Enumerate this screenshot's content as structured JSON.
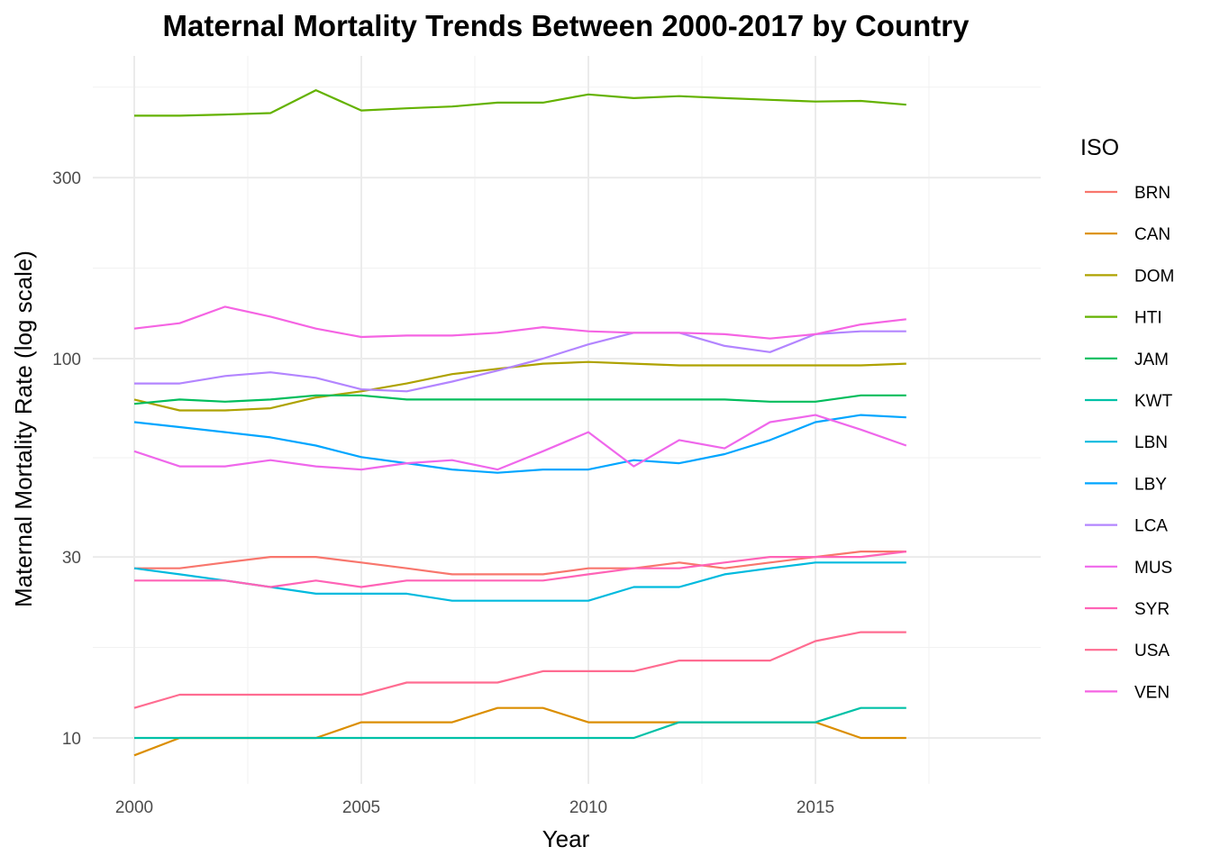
{
  "chart_data": {
    "type": "line",
    "title": "Maternal Mortality Trends Between 2000-2017 by Country",
    "xlabel": "Year",
    "ylabel": "Maternal Mortality Rate (log scale)",
    "y_scale": "log10",
    "x_ticks": [
      2000,
      2005,
      2010,
      2015
    ],
    "y_ticks": [
      10,
      30,
      100,
      300
    ],
    "xlim": [
      1999,
      2019
    ],
    "ylim": [
      8,
      600
    ],
    "grid": true,
    "legend": {
      "title": "ISO",
      "position": "right"
    },
    "x": [
      2000,
      2001,
      2002,
      2003,
      2004,
      2005,
      2006,
      2007,
      2008,
      2009,
      2010,
      2011,
      2012,
      2013,
      2014,
      2015,
      2016,
      2017
    ],
    "series": [
      {
        "name": "BRN",
        "color": "#F8766D",
        "values": [
          28,
          28,
          29,
          30,
          30,
          29,
          28,
          27,
          27,
          27,
          28,
          28,
          29,
          28,
          29,
          30,
          31,
          31
        ]
      },
      {
        "name": "CAN",
        "color": "#DB8E00",
        "values": [
          9,
          10,
          10,
          10,
          10,
          11,
          11,
          11,
          12,
          12,
          11,
          11,
          11,
          11,
          11,
          11,
          10,
          10
        ]
      },
      {
        "name": "DOM",
        "color": "#AEA200",
        "values": [
          78,
          73,
          73,
          74,
          79,
          82,
          86,
          91,
          94,
          97,
          98,
          97,
          96,
          96,
          96,
          96,
          96,
          97
        ]
      },
      {
        "name": "HTI",
        "color": "#64B200",
        "values": [
          437,
          437,
          440,
          444,
          510,
          451,
          457,
          462,
          473,
          473,
          497,
          486,
          492,
          486,
          481,
          476,
          478,
          467
        ]
      },
      {
        "name": "JAM",
        "color": "#00BD5C",
        "values": [
          76,
          78,
          77,
          78,
          80,
          80,
          78,
          78,
          78,
          78,
          78,
          78,
          78,
          78,
          77,
          77,
          80,
          80
        ]
      },
      {
        "name": "KWT",
        "color": "#00C1A7",
        "values": [
          10,
          10,
          10,
          10,
          10,
          10,
          10,
          10,
          10,
          10,
          10,
          10,
          11,
          11,
          11,
          11,
          12,
          12
        ]
      },
      {
        "name": "LBN",
        "color": "#00BADE",
        "values": [
          28,
          27,
          26,
          25,
          24,
          24,
          24,
          23,
          23,
          23,
          23,
          25,
          25,
          27,
          28,
          29,
          29,
          29
        ]
      },
      {
        "name": "LBY",
        "color": "#00A6FF",
        "values": [
          68,
          66,
          64,
          62,
          59,
          55,
          53,
          51,
          50,
          51,
          51,
          54,
          53,
          56,
          61,
          68,
          71,
          70
        ]
      },
      {
        "name": "LCA",
        "color": "#B385FF",
        "values": [
          86,
          86,
          90,
          92,
          89,
          83,
          82,
          87,
          93,
          100,
          109,
          117,
          117,
          108,
          104,
          116,
          118,
          118
        ]
      },
      {
        "name": "MUS",
        "color": "#EF67EB",
        "values": [
          57,
          52,
          52,
          54,
          52,
          51,
          53,
          54,
          51,
          57,
          64,
          52,
          61,
          58,
          68,
          71,
          65,
          59
        ]
      },
      {
        "name": "SYR",
        "color": "#FF63B6",
        "values": [
          26,
          26,
          26,
          25,
          26,
          25,
          26,
          26,
          26,
          26,
          27,
          28,
          28,
          29,
          30,
          30,
          30,
          31
        ]
      },
      {
        "name": "USA",
        "color": "#FF6C91",
        "values": [
          12,
          13,
          13,
          13,
          13,
          13,
          14,
          14,
          14,
          15,
          15,
          15,
          16,
          16,
          16,
          18,
          19,
          19
        ]
      },
      {
        "name": "VEN",
        "color": "#F564E3",
        "values": [
          120,
          124,
          137,
          129,
          120,
          114,
          115,
          115,
          117,
          121,
          118,
          117,
          117,
          116,
          113,
          116,
          123,
          127
        ]
      }
    ]
  }
}
